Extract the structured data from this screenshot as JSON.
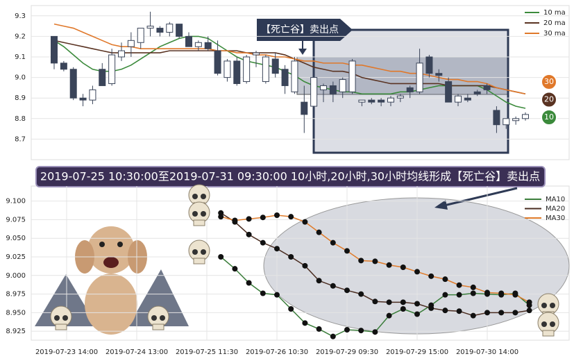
{
  "chart_data": [
    {
      "type": "candlestick",
      "annotation": "【死亡谷】卖出点",
      "up_color": "#ffffff",
      "down_color": "#3a4459",
      "ylim": [
        8.6,
        9.35
      ],
      "yticks": [
        8.7,
        8.8,
        8.9,
        {
          "value": 9,
          "label": "9.0"
        },
        9.1,
        9.2,
        9.3
      ],
      "grid": true,
      "legend": "upper right",
      "open": [
        9.2,
        9.07,
        9.04,
        8.9,
        8.89,
        9.04,
        8.97,
        9.1,
        9.15,
        9.17,
        9.24,
        9.24,
        9.22,
        9.26,
        9.2,
        9.15,
        9.17,
        9.13,
        9.0,
        9.08,
        8.98,
        9.11,
        8.98,
        9.09,
        9.04,
        8.93,
        8.88,
        8.86,
        8.94,
        8.96,
        8.93,
        8.93,
        8.88,
        8.89,
        8.89,
        8.88,
        8.9,
        8.95,
        8.93,
        9.1,
        9.02,
        8.98,
        8.88,
        8.9,
        8.93,
        8.96,
        8.84,
        8.77,
        8.79,
        8.8
      ],
      "high": [
        9.2,
        9.08,
        9.05,
        8.92,
        8.96,
        9.07,
        9.14,
        9.17,
        9.22,
        9.24,
        9.32,
        9.25,
        9.27,
        9.26,
        9.22,
        9.18,
        9.2,
        9.18,
        9.09,
        9.1,
        9.11,
        9.13,
        9.11,
        9.12,
        9.06,
        9.1,
        8.96,
        9.01,
        8.97,
        8.98,
        9.0,
        9.09,
        8.89,
        8.9,
        8.9,
        8.91,
        8.92,
        8.96,
        9.14,
        9.11,
        9.04,
        9.0,
        8.92,
        8.92,
        8.94,
        8.97,
        8.86,
        8.8,
        8.81,
        8.83
      ],
      "low": [
        9.04,
        9.03,
        8.89,
        8.86,
        8.87,
        8.96,
        8.96,
        9.08,
        9.1,
        9.14,
        9.2,
        9.2,
        9.2,
        9.19,
        9.15,
        9.13,
        9.13,
        9.01,
        8.98,
        8.96,
        8.97,
        9.05,
        8.97,
        9.0,
        8.92,
        8.92,
        8.73,
        8.85,
        8.88,
        8.88,
        8.9,
        8.92,
        8.86,
        8.87,
        8.86,
        8.86,
        8.88,
        8.9,
        8.92,
        9.0,
        8.98,
        8.88,
        8.86,
        8.88,
        8.91,
        8.92,
        8.73,
        8.75,
        8.77,
        8.79
      ],
      "close": [
        9.07,
        9.04,
        8.9,
        8.89,
        8.94,
        8.96,
        9.11,
        9.13,
        9.18,
        9.24,
        9.25,
        9.22,
        9.26,
        9.2,
        9.15,
        9.17,
        9.14,
        9.02,
        9.08,
        8.97,
        9.1,
        9.12,
        9.1,
        9.02,
        8.96,
        9.08,
        8.82,
        9.0,
        8.96,
        8.92,
        8.99,
        9.08,
        8.89,
        8.88,
        8.88,
        8.9,
        8.91,
        8.93,
        9.07,
        9.02,
        9.01,
        8.88,
        8.91,
        8.89,
        8.92,
        8.94,
        8.77,
        8.8,
        8.8,
        8.82
      ],
      "series": [
        {
          "name": "10 ma",
          "color": "#3b8a3b",
          "badge": "10",
          "values": [
            9.18,
            9.15,
            9.11,
            9.07,
            9.04,
            9.03,
            9.03,
            9.04,
            9.06,
            9.09,
            9.12,
            9.15,
            9.17,
            9.19,
            9.2,
            9.2,
            9.19,
            9.16,
            9.13,
            9.1,
            9.08,
            9.07,
            9.06,
            9.05,
            9.03,
            9.01,
            8.98,
            8.96,
            8.95,
            8.94,
            8.93,
            8.93,
            8.92,
            8.92,
            8.92,
            8.92,
            8.93,
            8.93,
            8.94,
            8.95,
            8.96,
            8.96,
            8.96,
            8.96,
            8.96,
            8.94,
            8.91,
            8.88,
            8.86,
            8.85
          ]
        },
        {
          "name": "20 ma",
          "color": "#5a3322",
          "badge": "20",
          "values": [
            9.18,
            9.17,
            9.16,
            9.15,
            9.14,
            9.13,
            9.12,
            9.12,
            9.12,
            9.12,
            9.12,
            9.12,
            9.13,
            9.13,
            9.13,
            9.13,
            9.13,
            9.13,
            9.13,
            9.13,
            9.12,
            9.12,
            9.12,
            9.12,
            9.11,
            9.09,
            9.07,
            9.05,
            9.04,
            9.03,
            9.03,
            9.02,
            9.0,
            8.99,
            8.98,
            8.97,
            8.97,
            8.97,
            8.97,
            8.97,
            8.97,
            8.96,
            8.96,
            8.96,
            8.96,
            8.96,
            8.95,
            8.94,
            8.93,
            8.92
          ]
        },
        {
          "name": "30 ma",
          "color": "#e0782a",
          "badge": "30",
          "values": [
            9.26,
            9.25,
            9.24,
            9.22,
            9.2,
            9.18,
            9.16,
            9.15,
            9.15,
            9.14,
            9.14,
            9.14,
            9.14,
            9.14,
            9.14,
            9.14,
            9.14,
            9.13,
            9.13,
            9.12,
            9.12,
            9.11,
            9.11,
            9.1,
            9.1,
            9.09,
            9.08,
            9.08,
            9.07,
            9.07,
            9.07,
            9.06,
            9.06,
            9.05,
            9.04,
            9.03,
            9.03,
            9.02,
            9.02,
            9.01,
            9.0,
            8.99,
            8.99,
            8.98,
            8.98,
            8.97,
            8.95,
            8.94,
            8.93,
            8.92
          ]
        }
      ]
    },
    {
      "type": "line",
      "title": "2019-07-25 10:30:00至2019-07-31 09:30:00 10小时,20小时,30小时均线形成【死亡谷】卖出点",
      "ylim": [
        8.913,
        9.123
      ],
      "yticks": [
        {
          "value": 8.925,
          "label": "8.925"
        },
        {
          "value": 8.95,
          "label": "8.950"
        },
        {
          "value": 8.975,
          "label": "8.975"
        },
        {
          "value": 9,
          "label": "9.000"
        },
        {
          "value": 9.025,
          "label": "9.025"
        },
        {
          "value": 9.05,
          "label": "9.050"
        },
        {
          "value": 9.075,
          "label": "9.075"
        },
        {
          "value": 9.1,
          "label": "9.100"
        }
      ],
      "grid": true,
      "legend": "upper right",
      "categories": [
        "2019-07-23 14:00",
        null,
        null,
        null,
        null,
        "2019-07-24 13:00",
        null,
        null,
        null,
        null,
        "2019-07-25 11:30",
        null,
        null,
        null,
        null,
        "2019-07-26 10:30",
        null,
        null,
        null,
        null,
        "2019-07-29 09:30",
        null,
        null,
        null,
        null,
        "2019-07-29 15:00",
        null,
        null,
        null,
        null,
        "2019-07-30 14:00",
        null,
        null,
        null
      ],
      "series": [
        {
          "name": "MA10",
          "color": "#3a7d3a",
          "values": [
            null,
            null,
            null,
            null,
            null,
            null,
            null,
            null,
            null,
            null,
            null,
            9.025,
            9.009,
            8.99,
            8.976,
            8.974,
            8.955,
            8.936,
            8.928,
            8.918,
            8.927,
            8.926,
            8.924,
            8.946,
            8.955,
            8.948,
            8.96,
            8.974,
            8.974,
            8.976,
            8.975,
            8.974,
            8.976,
            8.96
          ]
        },
        {
          "name": "MA20",
          "color": "#4a2c20",
          "values": [
            null,
            null,
            null,
            null,
            null,
            null,
            null,
            null,
            null,
            null,
            null,
            9.084,
            9.072,
            9.055,
            9.044,
            9.036,
            9.025,
            9.013,
            8.993,
            8.986,
            8.98,
            8.975,
            8.965,
            8.964,
            8.964,
            8.962,
            8.956,
            8.953,
            8.952,
            8.946,
            8.95,
            8.95,
            8.95,
            8.953
          ]
        },
        {
          "name": "MA30",
          "color": "#e07b2a",
          "values": [
            null,
            null,
            null,
            null,
            null,
            null,
            null,
            null,
            null,
            null,
            null,
            9.079,
            9.074,
            9.076,
            9.078,
            9.081,
            9.079,
            9.072,
            9.058,
            9.044,
            9.033,
            9.02,
            9.019,
            9.014,
            9.011,
            9.005,
            8.999,
            8.995,
            8.987,
            8.984,
            8.977,
            8.976,
            8.974,
            8.964
          ]
        }
      ]
    }
  ]
}
